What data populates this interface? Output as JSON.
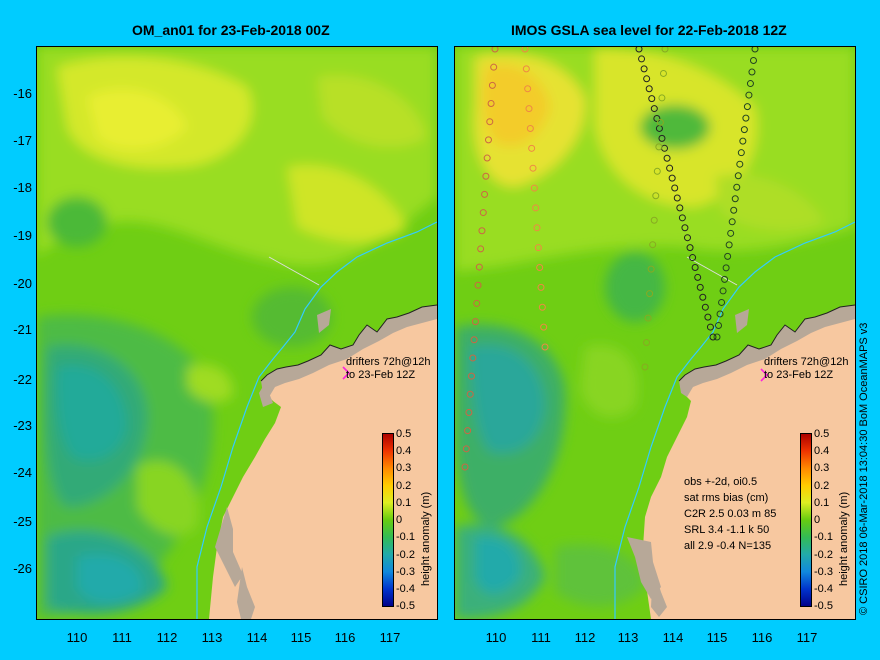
{
  "left_panel": {
    "title": "OM_an01 for 23-Feb-2018 00Z",
    "drifter_line1": "drifters 72h@12h",
    "drifter_line2": "to 23-Feb 12Z"
  },
  "right_panel": {
    "title": "IMOS GSLA sea level  for 22-Feb-2018 12Z",
    "drifter_line1": "drifters 72h@12h",
    "drifter_line2": "to 23-Feb 12Z",
    "stats": [
      "obs +-2d, oi0.5",
      "sat rms bias (cm)",
      "C2R   2.5 0.03 m 85",
      "SRL   3.4 -1.1 k 50",
      "all   2.9 -0.4 N=135"
    ]
  },
  "lat_ticks": [
    "-16",
    "-17",
    "-18",
    "-19",
    "-20",
    "-21",
    "-22",
    "-23",
    "-24",
    "-25",
    "-26"
  ],
  "lon_ticks": [
    "110",
    "111",
    "112",
    "113",
    "114",
    "115",
    "116",
    "117"
  ],
  "colorbar": {
    "label": "height anomaly (m)",
    "ticks": [
      "0.5",
      "0.4",
      "0.3",
      "0.2",
      "0.1",
      "0",
      "-0.1",
      "-0.2",
      "-0.3",
      "-0.4",
      "-0.5"
    ]
  },
  "credit": "© CSIRO 2018   06-Mar-2018 13:04:30 BoM OceanMAPS v3",
  "colors": {
    "background": "#00ccff",
    "land": "#f7c8a0",
    "sea": "#66cc11"
  }
}
